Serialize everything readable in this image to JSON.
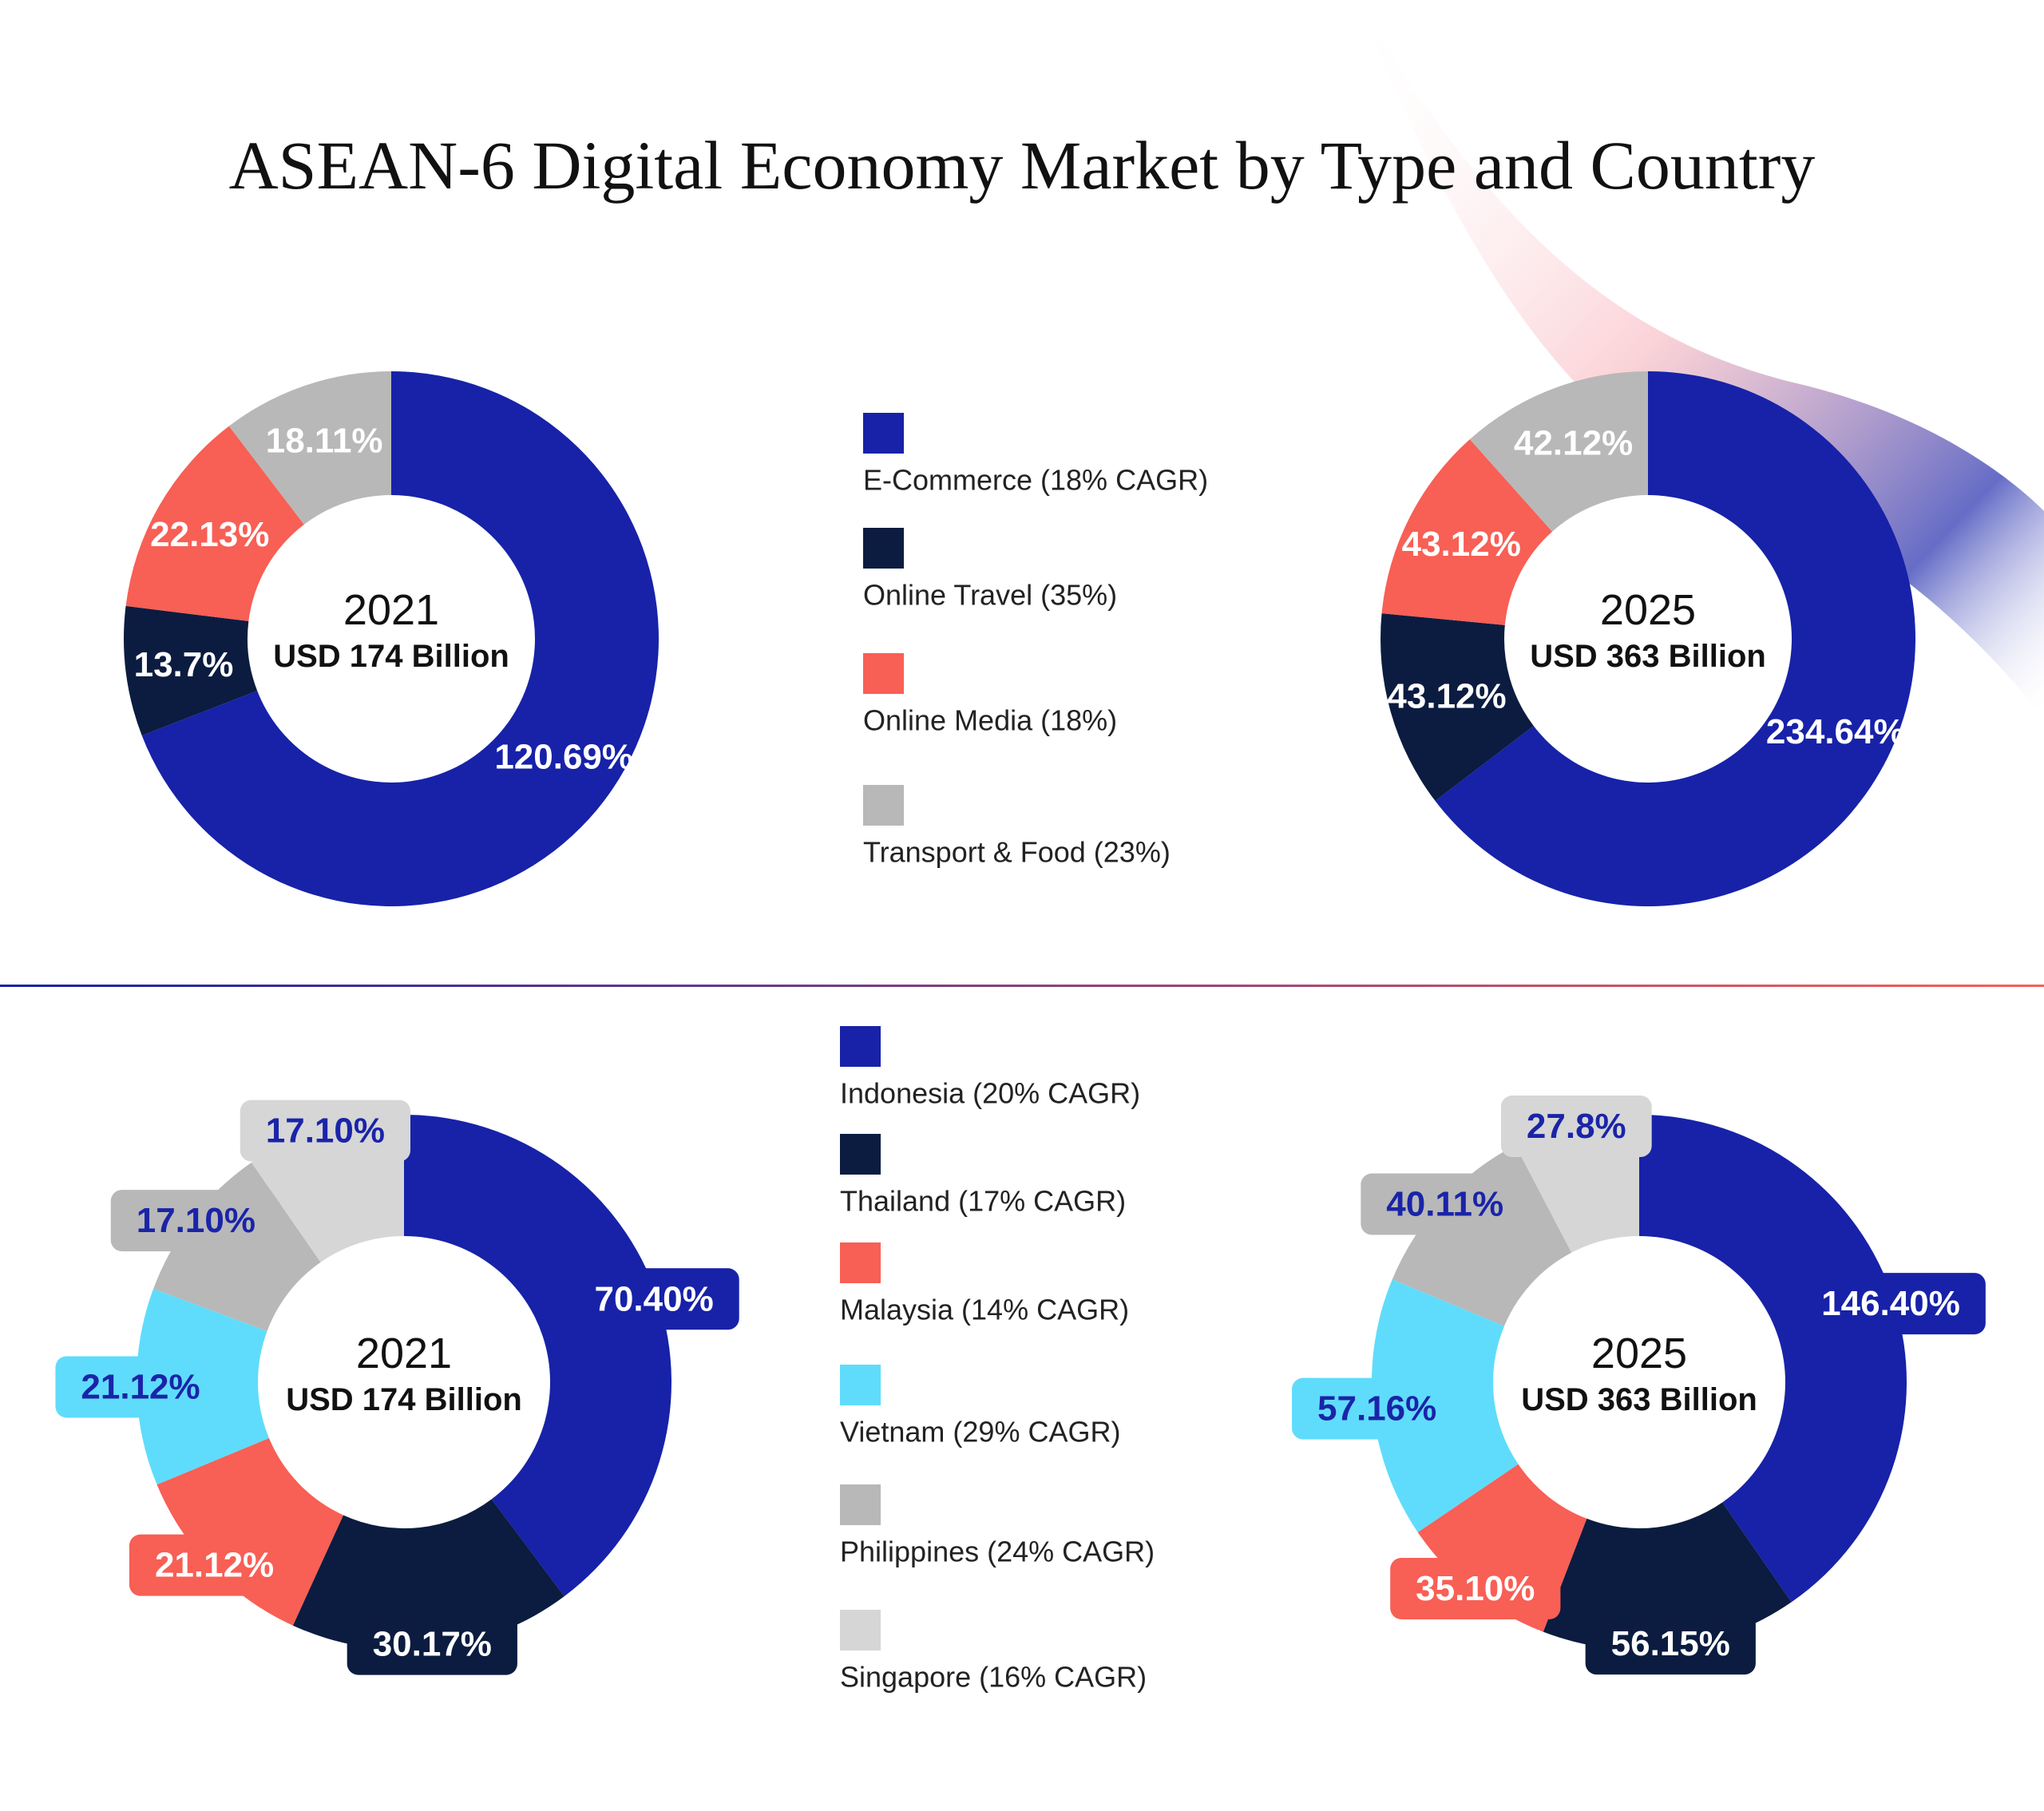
{
  "title": "ASEAN-6 Digital Economy Market by Type and Country",
  "chart_data": [
    {
      "type": "donut",
      "center_title": "2021",
      "center_subtitle": "USD 174 Billion",
      "categories": [
        "E-Commerce (18% CAGR)",
        "Online Travel (35%)",
        "Online Media (18%)",
        "Transport & Food (23%)"
      ],
      "values": [
        120.69,
        13.7,
        22.13,
        18.11
      ],
      "value_labels": [
        "120.69%",
        "13.7%",
        "22.13%",
        "18.11%"
      ],
      "colors": [
        "#1722a8",
        "#0b1c40",
        "#f85f55",
        "#b8b8b8"
      ],
      "label_boxes": false
    },
    {
      "type": "donut",
      "center_title": "2025",
      "center_subtitle": "USD 363 Billion",
      "values": [
        234.64,
        43.12,
        43.12,
        42.12
      ],
      "value_labels": [
        "234.64%",
        "43.12%",
        "43.12%",
        "42.12%"
      ],
      "colors": [
        "#1722a8",
        "#0b1c40",
        "#f85f55",
        "#b8b8b8"
      ],
      "label_boxes": false
    },
    {
      "type": "donut",
      "center_title": "2021",
      "center_subtitle": "USD 174 Billion",
      "categories": [
        "Indonesia (20% CAGR)",
        "Thailand (17% CAGR)",
        "Malaysia (14% CAGR)",
        "Vietnam (29% CAGR)",
        "Philippines (24% CAGR)",
        "Singapore (16% CAGR)"
      ],
      "values": [
        70.4,
        30.17,
        21.12,
        21.12,
        17.1,
        17.1
      ],
      "value_labels": [
        "70.40%",
        "30.17%",
        "21.12%",
        "21.12%",
        "17.10%",
        "17.10%"
      ],
      "colors": [
        "#1722a8",
        "#0b1c40",
        "#f85f55",
        "#5fdcfb",
        "#b8b8b8",
        "#d6d6d6"
      ],
      "label_boxes": true
    },
    {
      "type": "donut",
      "center_title": "2025",
      "center_subtitle": "USD 363 Billion",
      "values": [
        146.4,
        56.15,
        35.1,
        57.16,
        40.11,
        27.8
      ],
      "value_labels": [
        "146.40%",
        "56.15%",
        "35.10%",
        "57.16%",
        "40.11%",
        "27.8%"
      ],
      "colors": [
        "#1722a8",
        "#0b1c40",
        "#f85f55",
        "#5fdcfb",
        "#b8b8b8",
        "#d6d6d6"
      ],
      "label_boxes": true
    }
  ]
}
